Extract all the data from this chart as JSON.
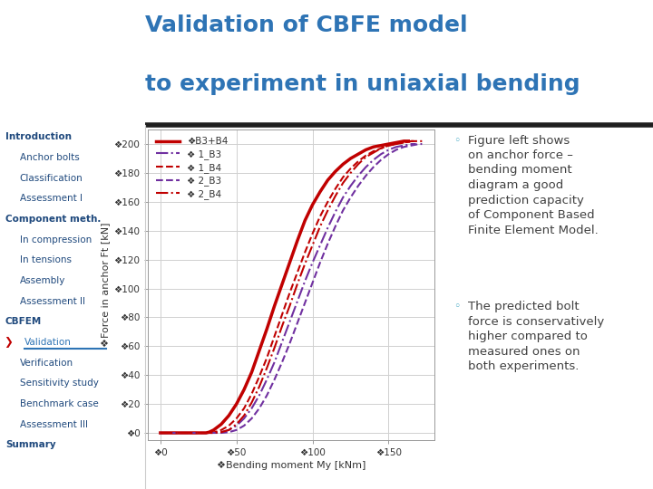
{
  "title_line1": "Validation of CBFE model",
  "title_line2": "to experiment in uniaxial bending",
  "title_color": "#2E74B5",
  "title_fontsize": 18,
  "title_bold": true,
  "nav_items": [
    {
      "text": "Introduction",
      "bold": true,
      "indent": 0
    },
    {
      "text": "Anchor bolts",
      "bold": false,
      "indent": 1
    },
    {
      "text": "Classification",
      "bold": false,
      "indent": 1
    },
    {
      "text": "Assessment I",
      "bold": false,
      "indent": 1
    },
    {
      "text": "Component meth.",
      "bold": true,
      "indent": 0
    },
    {
      "text": "In compression",
      "bold": false,
      "indent": 1
    },
    {
      "text": "In tensions",
      "bold": false,
      "indent": 1
    },
    {
      "text": "Assembly",
      "bold": false,
      "indent": 1
    },
    {
      "text": "Assessment II",
      "bold": false,
      "indent": 1
    },
    {
      "text": "CBFEM",
      "bold": true,
      "indent": 0
    },
    {
      "text": "Validation",
      "bold": false,
      "indent": 1,
      "active": true
    },
    {
      "text": "Verification",
      "bold": false,
      "indent": 1
    },
    {
      "text": "Sensitivity study",
      "bold": false,
      "indent": 1
    },
    {
      "text": "Benchmark case",
      "bold": false,
      "indent": 1
    },
    {
      "text": "Assessment III",
      "bold": false,
      "indent": 1
    },
    {
      "text": "Summary",
      "bold": true,
      "indent": 0
    }
  ],
  "nav_color": "#1F497D",
  "nav_active_color": "#2E74B5",
  "nav_fontsize": 7.5,
  "xlabel": "❖Bending moment My [kNm]",
  "ylabel": "❖Force in anchor Ft [kN]",
  "xlim": [
    -8,
    180
  ],
  "ylim": [
    -5,
    210
  ],
  "xticks": [
    0,
    50,
    100,
    150
  ],
  "yticks": [
    0,
    20,
    40,
    60,
    80,
    100,
    120,
    140,
    160,
    180,
    200
  ],
  "series": [
    {
      "label": "❖B3+B4",
      "color": "#C00000",
      "linestyle": "solid",
      "linewidth": 2.5,
      "x": [
        0,
        5,
        10,
        15,
        20,
        25,
        30,
        32,
        35,
        40,
        45,
        50,
        55,
        60,
        65,
        70,
        75,
        80,
        85,
        90,
        95,
        100,
        105,
        110,
        115,
        120,
        125,
        130,
        135,
        140,
        145,
        150,
        155,
        160,
        163
      ],
      "y": [
        0,
        0,
        0,
        0,
        0,
        0,
        0,
        0.5,
        2,
        6,
        12,
        20,
        30,
        42,
        57,
        72,
        88,
        103,
        118,
        133,
        147,
        158,
        167,
        175,
        181,
        186,
        190,
        193,
        196,
        198,
        199,
        200,
        201,
        202,
        202
      ]
    },
    {
      "label": "❖ 1_B3",
      "color": "#7030A0",
      "linestyle": "dashdot",
      "linewidth": 1.5,
      "x": [
        0,
        5,
        10,
        15,
        20,
        25,
        30,
        35,
        40,
        45,
        50,
        55,
        60,
        65,
        70,
        75,
        80,
        85,
        90,
        95,
        100,
        105,
        110,
        115,
        120,
        125,
        130,
        135,
        140,
        145,
        150,
        155,
        160,
        165,
        168
      ],
      "y": [
        0,
        0,
        0,
        0,
        0,
        0,
        0,
        0,
        0.5,
        2,
        5,
        10,
        17,
        26,
        37,
        49,
        63,
        77,
        91,
        105,
        118,
        130,
        142,
        153,
        163,
        171,
        178,
        184,
        189,
        193,
        196,
        198,
        199,
        200,
        200
      ]
    },
    {
      "label": "❖ 1_B4",
      "color": "#C00000",
      "linestyle": "dashed",
      "linewidth": 1.5,
      "x": [
        0,
        5,
        10,
        15,
        20,
        25,
        30,
        35,
        40,
        45,
        50,
        55,
        60,
        65,
        70,
        75,
        80,
        85,
        90,
        95,
        100,
        105,
        110,
        115,
        120,
        125,
        130,
        135,
        140,
        145,
        150,
        155,
        160,
        165,
        168
      ],
      "y": [
        0,
        0,
        0,
        0,
        0,
        0,
        0,
        0.3,
        2,
        5,
        10,
        17,
        27,
        39,
        52,
        67,
        82,
        97,
        111,
        125,
        138,
        150,
        160,
        169,
        177,
        183,
        188,
        192,
        195,
        197,
        199,
        200,
        201,
        202,
        202
      ]
    },
    {
      "label": "❖ 2_B3",
      "color": "#7030A0",
      "linestyle": "dashed",
      "linewidth": 1.5,
      "x": [
        0,
        5,
        10,
        15,
        20,
        25,
        30,
        35,
        40,
        45,
        50,
        55,
        60,
        65,
        70,
        75,
        80,
        85,
        90,
        95,
        100,
        105,
        110,
        115,
        120,
        125,
        130,
        135,
        140,
        145,
        150,
        155,
        160,
        165,
        170,
        172
      ],
      "y": [
        0,
        0,
        0,
        0,
        0,
        0,
        0,
        0,
        0,
        0.5,
        2,
        5,
        10,
        17,
        26,
        37,
        49,
        62,
        76,
        90,
        104,
        118,
        131,
        143,
        154,
        163,
        171,
        178,
        184,
        189,
        193,
        196,
        198,
        199,
        200,
        200
      ]
    },
    {
      "label": "❖ 2_B4",
      "color": "#C00000",
      "linestyle": "dashdot",
      "linewidth": 1.5,
      "x": [
        0,
        5,
        10,
        15,
        20,
        25,
        30,
        35,
        40,
        45,
        50,
        55,
        60,
        65,
        70,
        75,
        80,
        85,
        90,
        95,
        100,
        105,
        110,
        115,
        120,
        125,
        130,
        135,
        140,
        145,
        150,
        155,
        160,
        165,
        170,
        172
      ],
      "y": [
        0,
        0,
        0,
        0,
        0,
        0,
        0,
        0,
        0.5,
        2,
        6,
        12,
        21,
        32,
        45,
        59,
        74,
        88,
        103,
        117,
        130,
        143,
        154,
        164,
        173,
        180,
        186,
        191,
        194,
        197,
        199,
        200,
        201,
        202,
        202,
        202
      ]
    }
  ],
  "bullet_color": "#4BACC6",
  "text_color": "#404040",
  "text_fontsize": 9.5,
  "annotation1": "Figure left shows\non anchor force –\nbending moment\ndiagram a good\nprediction capacity\nof Component Based\nFinite Element Model.",
  "annotation2": "The predicted bolt\nforce is conservatively\nhigher compared to\nmeasured ones on\nboth experiments.",
  "separator_color": "#1F1F1F",
  "grid_color": "#D0D0D0",
  "bg_color": "#FFFFFF",
  "plot_area_color": "#FFFFFF"
}
